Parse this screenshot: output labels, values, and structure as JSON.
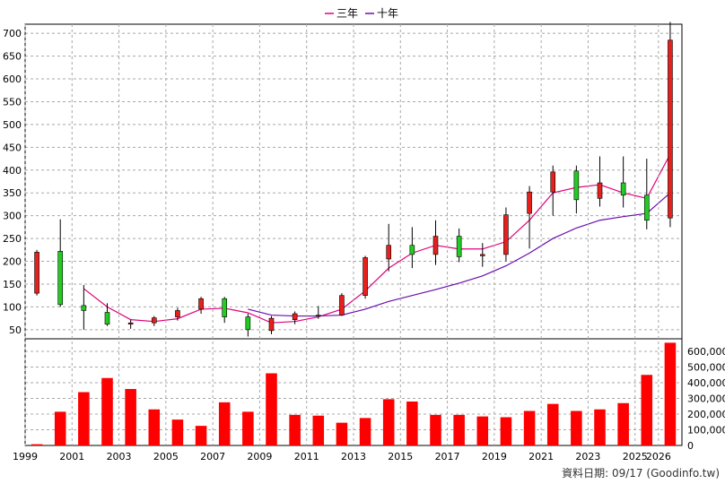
{
  "legend": {
    "ma3_label": "三年",
    "ma10_label": "十年",
    "ma3_color": "#e0007a",
    "ma10_color": "#6a0dad"
  },
  "footer": {
    "label": "資料日期:",
    "date": "09/17",
    "source": "(Goodinfo.tw)"
  },
  "colors": {
    "up": "#e8201c",
    "down": "#22cc22",
    "volume": "#ff0000",
    "grid": "#a8a8a8"
  },
  "chart_data": [
    {
      "type": "candlestick",
      "title": "",
      "ylim": [
        30,
        720
      ],
      "yticks": [
        50,
        100,
        150,
        200,
        250,
        300,
        350,
        400,
        450,
        500,
        550,
        600,
        650,
        700
      ],
      "xlim": [
        1999,
        2026
      ],
      "xticks": [
        "1999",
        "2001",
        "2003",
        "2005",
        "2007",
        "2009",
        "2011",
        "2013",
        "2015",
        "2017",
        "2019",
        "2021",
        "2023",
        "2025",
        "2026"
      ],
      "grid": true,
      "candles": [
        {
          "year": 1999,
          "open": 130,
          "high": 225,
          "low": 125,
          "close": 220
        },
        {
          "year": 2000,
          "open": 222,
          "high": 292,
          "low": 100,
          "close": 105
        },
        {
          "year": 2001,
          "open": 103,
          "high": 148,
          "low": 50,
          "close": 92
        },
        {
          "year": 2002,
          "open": 88,
          "high": 108,
          "low": 58,
          "close": 62
        },
        {
          "year": 2003,
          "open": 62,
          "high": 72,
          "low": 52,
          "close": 65
        },
        {
          "year": 2004,
          "open": 65,
          "high": 80,
          "low": 58,
          "close": 76
        },
        {
          "year": 2005,
          "open": 78,
          "high": 98,
          "low": 70,
          "close": 92
        },
        {
          "year": 2006,
          "open": 95,
          "high": 122,
          "low": 85,
          "close": 118
        },
        {
          "year": 2007,
          "open": 118,
          "high": 122,
          "low": 65,
          "close": 78
        },
        {
          "year": 2008,
          "open": 78,
          "high": 85,
          "low": 35,
          "close": 50
        },
        {
          "year": 2009,
          "open": 48,
          "high": 80,
          "low": 40,
          "close": 75
        },
        {
          "year": 2010,
          "open": 72,
          "high": 90,
          "low": 62,
          "close": 85
        },
        {
          "year": 2011,
          "open": 82,
          "high": 102,
          "low": 74,
          "close": 80
        },
        {
          "year": 2012,
          "open": 82,
          "high": 130,
          "low": 80,
          "close": 125
        },
        {
          "year": 2013,
          "open": 125,
          "high": 212,
          "low": 118,
          "close": 208
        },
        {
          "year": 2014,
          "open": 205,
          "high": 282,
          "low": 178,
          "close": 235
        },
        {
          "year": 2015,
          "open": 235,
          "high": 275,
          "low": 185,
          "close": 215
        },
        {
          "year": 2016,
          "open": 215,
          "high": 290,
          "low": 192,
          "close": 255
        },
        {
          "year": 2017,
          "open": 255,
          "high": 272,
          "low": 198,
          "close": 210
        },
        {
          "year": 2018,
          "open": 212,
          "high": 240,
          "low": 188,
          "close": 215
        },
        {
          "year": 2019,
          "open": 215,
          "high": 318,
          "low": 200,
          "close": 302
        },
        {
          "year": 2020,
          "open": 305,
          "high": 365,
          "low": 228,
          "close": 352
        },
        {
          "year": 2021,
          "open": 352,
          "high": 410,
          "low": 300,
          "close": 396
        },
        {
          "year": 2022,
          "open": 398,
          "high": 410,
          "low": 305,
          "close": 335
        },
        {
          "year": 2023,
          "open": 338,
          "high": 430,
          "low": 320,
          "close": 372
        },
        {
          "year": 2024,
          "open": 372,
          "high": 430,
          "low": 318,
          "close": 345
        },
        {
          "year": 2025,
          "open": 345,
          "high": 425,
          "low": 270,
          "close": 290
        },
        {
          "year": 2026,
          "open": 295,
          "high": 725,
          "low": 275,
          "close": 685
        }
      ],
      "series": [
        {
          "name": "三年",
          "x": [
            2001,
            2002,
            2003,
            2004,
            2005,
            2006,
            2007,
            2008,
            2009,
            2010,
            2011,
            2012,
            2013,
            2014,
            2015,
            2016,
            2017,
            2018,
            2019,
            2020,
            2021,
            2022,
            2023,
            2024,
            2025,
            2026
          ],
          "values": [
            140,
            100,
            72,
            68,
            74,
            95,
            97,
            87,
            65,
            68,
            78,
            95,
            135,
            185,
            218,
            235,
            227,
            227,
            243,
            290,
            350,
            362,
            368,
            350,
            338,
            435
          ]
        },
        {
          "name": "十年",
          "x": [
            2008,
            2009,
            2010,
            2011,
            2012,
            2013,
            2014,
            2015,
            2016,
            2017,
            2018,
            2019,
            2020,
            2021,
            2022,
            2023,
            2024,
            2025,
            2026
          ],
          "values": [
            95,
            82,
            80,
            80,
            82,
            95,
            112,
            125,
            138,
            152,
            168,
            190,
            218,
            250,
            273,
            290,
            298,
            305,
            350
          ]
        }
      ]
    },
    {
      "type": "bar",
      "title": "",
      "ylim": [
        0,
        680000
      ],
      "yticks": [
        0,
        100000,
        200000,
        300000,
        400000,
        500000,
        600000
      ],
      "ytick_labels": [
        "0",
        "100,000",
        "200,000",
        "300,000",
        "400,000",
        "500,000",
        "600,000"
      ],
      "categories": [
        "1999",
        "2000",
        "2001",
        "2002",
        "2003",
        "2004",
        "2005",
        "2006",
        "2007",
        "2008",
        "2009",
        "2010",
        "2011",
        "2012",
        "2013",
        "2014",
        "2015",
        "2016",
        "2017",
        "2018",
        "2019",
        "2020",
        "2021",
        "2022",
        "2023",
        "2024",
        "2025",
        "2026"
      ],
      "values": [
        8000,
        215000,
        340000,
        430000,
        360000,
        230000,
        165000,
        125000,
        275000,
        215000,
        460000,
        195000,
        190000,
        145000,
        175000,
        295000,
        280000,
        195000,
        195000,
        185000,
        180000,
        220000,
        265000,
        220000,
        230000,
        270000,
        450000,
        655000
      ],
      "grid": true
    }
  ]
}
